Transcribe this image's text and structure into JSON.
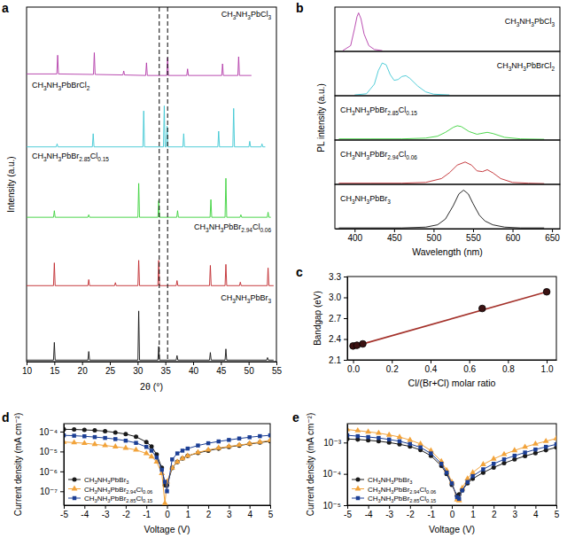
{
  "chart_data": [
    {
      "title": "a",
      "type": "ridgeline",
      "x_label": "2θ (°)",
      "y_label": "Intensity (a.u.)",
      "xlim": [
        10,
        55
      ],
      "xticks": [
        10,
        15,
        20,
        25,
        30,
        35,
        40,
        45,
        50,
        55
      ],
      "ylim": [
        0,
        1.4
      ],
      "tick_labels": "x",
      "vlines": [
        33.9,
        35.4
      ],
      "series": [
        {
          "name": "CH3NH3PbCl3",
          "color": "#b23aa8",
          "x": [
            10,
            15.45,
            15.6,
            15.75,
            22.05,
            22.2,
            22.35,
            27.35,
            27.5,
            27.65,
            31.45,
            31.6,
            31.75,
            35.25,
            35.4,
            35.55,
            38.85,
            39.0,
            39.15,
            45.15,
            45.3,
            45.45,
            48.05,
            48.2,
            48.35,
            50.5
          ],
          "values": [
            0.08,
            0.08,
            0.45,
            0.08,
            0.07,
            0.5,
            0.07,
            0.06,
            0.14,
            0.06,
            0.05,
            0.3,
            0.05,
            0.05,
            0.4,
            0.05,
            0.05,
            0.18,
            0.05,
            0.05,
            0.28,
            0.05,
            0.05,
            0.42,
            0.05,
            0.05
          ]
        },
        {
          "name": "CH3NH3PbBrCl2",
          "color": "#3fc7d4",
          "x": [
            10,
            15.35,
            15.5,
            15.65,
            21.85,
            22.0,
            22.15,
            30.95,
            31.1,
            31.25,
            34.65,
            34.8,
            34.95,
            35.15,
            35.3,
            35.45,
            38.15,
            38.3,
            38.45,
            44.45,
            44.6,
            44.75,
            47.15,
            47.3,
            47.45,
            50.05,
            50.2,
            50.35,
            52.25,
            52.4,
            52.55,
            53
          ],
          "values": [
            0.04,
            0.04,
            0.1,
            0.04,
            0.04,
            0.3,
            0.04,
            0.04,
            0.75,
            0.04,
            0.04,
            0.85,
            0.04,
            0.04,
            0.45,
            0.04,
            0.04,
            0.3,
            0.04,
            0.04,
            0.35,
            0.04,
            0.04,
            0.8,
            0.04,
            0.04,
            0.15,
            0.04,
            0.04,
            0.1,
            0.04,
            0.04
          ]
        },
        {
          "name": "CH3NH3PbBr2.85Cl0.15",
          "color": "#3ad13a",
          "x": [
            10,
            14.85,
            15.0,
            15.15,
            21.05,
            21.2,
            21.35,
            30.05,
            30.2,
            30.35,
            33.65,
            33.8,
            33.95,
            37.05,
            37.2,
            37.35,
            43.05,
            43.2,
            43.35,
            45.75,
            45.9,
            46.05,
            48.45,
            48.6,
            48.75,
            53.35,
            53.5,
            53.65,
            54
          ],
          "values": [
            0.05,
            0.05,
            0.18,
            0.05,
            0.05,
            0.1,
            0.05,
            0.05,
            0.72,
            0.05,
            0.05,
            0.38,
            0.05,
            0.05,
            0.18,
            0.05,
            0.05,
            0.4,
            0.05,
            0.05,
            0.82,
            0.05,
            0.05,
            0.1,
            0.05,
            0.05,
            0.15,
            0.05,
            0.05
          ]
        },
        {
          "name": "CH3NH3PbBr2.94Cl0.06",
          "color": "#c0282d",
          "x": [
            10,
            14.85,
            15.0,
            15.15,
            21.05,
            21.2,
            21.35,
            25.85,
            26.0,
            26.15,
            30.05,
            30.2,
            30.35,
            33.65,
            33.8,
            33.95,
            36.95,
            37.1,
            37.25,
            42.95,
            43.1,
            43.25,
            45.75,
            45.9,
            46.05,
            48.35,
            48.5,
            48.65,
            53.35,
            53.5,
            53.65,
            54.5
          ],
          "values": [
            0.1,
            0.1,
            0.55,
            0.1,
            0.1,
            0.22,
            0.1,
            0.1,
            0.16,
            0.1,
            0.1,
            0.6,
            0.1,
            0.1,
            0.6,
            0.1,
            0.1,
            0.2,
            0.1,
            0.1,
            0.5,
            0.1,
            0.1,
            0.52,
            0.1,
            0.1,
            0.17,
            0.1,
            0.1,
            0.45,
            0.1,
            0.1
          ]
        },
        {
          "name": "CH3NH3PbBr3",
          "color": "#111111",
          "x": [
            10,
            14.85,
            15.0,
            15.15,
            21.05,
            21.2,
            21.35,
            30.05,
            30.2,
            30.35,
            33.65,
            33.8,
            33.95,
            36.95,
            37.1,
            37.25,
            42.95,
            43.1,
            43.25,
            45.75,
            45.9,
            46.05,
            53.25,
            53.4,
            53.55,
            54.5
          ],
          "values": [
            0.03,
            0.03,
            0.38,
            0.03,
            0.03,
            0.2,
            0.03,
            0.03,
            1.0,
            0.03,
            0.03,
            0.3,
            0.03,
            0.03,
            0.12,
            0.03,
            0.03,
            0.18,
            0.03,
            0.03,
            0.25,
            0.03,
            0.03,
            0.08,
            0.03,
            0.03
          ]
        }
      ]
    },
    {
      "title": "b",
      "type": "ridgeline",
      "x_label": "Wavelength (nm)",
      "y_label": "PL intensity (a.u.)",
      "xlim": [
        375,
        660
      ],
      "xticks": [
        400,
        450,
        500,
        550,
        600,
        650
      ],
      "ylim": [
        0,
        1.15
      ],
      "tick_labels": "x",
      "series": [
        {
          "name": "CH3NH3PbCl3",
          "color": "#b23aa8",
          "x": [
            385,
            395,
            400,
            403,
            405,
            408,
            412,
            418,
            425,
            435
          ],
          "values": [
            0.02,
            0.15,
            0.6,
            0.9,
            1.0,
            0.85,
            0.45,
            0.15,
            0.05,
            0.02
          ]
        },
        {
          "name": "CH3NH3PbBrCl2",
          "color": "#3fc7d4",
          "x": [
            400,
            415,
            425,
            430,
            435,
            440,
            445,
            450,
            455,
            460,
            465,
            470,
            480,
            490,
            500,
            520
          ],
          "values": [
            0.02,
            0.05,
            0.3,
            0.65,
            0.85,
            0.8,
            0.55,
            0.4,
            0.42,
            0.5,
            0.52,
            0.45,
            0.25,
            0.1,
            0.04,
            0.02
          ]
        },
        {
          "name": "CH3NH3PbBr2.85Cl0.15",
          "color": "#3ad13a",
          "x": [
            380,
            420,
            460,
            490,
            505,
            515,
            525,
            530,
            535,
            545,
            555,
            560,
            568,
            575,
            590,
            610,
            640
          ],
          "values": [
            0.03,
            0.03,
            0.03,
            0.05,
            0.1,
            0.2,
            0.33,
            0.37,
            0.35,
            0.22,
            0.15,
            0.17,
            0.2,
            0.17,
            0.07,
            0.03,
            0.02
          ]
        },
        {
          "name": "CH3NH3PbBr2.94Cl0.06",
          "color": "#c0282d",
          "x": [
            380,
            420,
            460,
            490,
            510,
            520,
            530,
            540,
            548,
            555,
            562,
            568,
            575,
            585,
            600,
            620,
            640
          ],
          "values": [
            0.03,
            0.03,
            0.03,
            0.05,
            0.15,
            0.3,
            0.5,
            0.58,
            0.5,
            0.35,
            0.33,
            0.38,
            0.3,
            0.15,
            0.05,
            0.03,
            0.02
          ]
        },
        {
          "name": "CH3NH3PbBr3",
          "color": "#111111",
          "x": [
            380,
            420,
            460,
            490,
            505,
            515,
            525,
            532,
            538,
            544,
            550,
            558,
            565,
            575,
            590,
            610,
            640
          ],
          "values": [
            0.02,
            0.02,
            0.02,
            0.04,
            0.1,
            0.25,
            0.6,
            0.9,
            1.0,
            0.9,
            0.65,
            0.35,
            0.2,
            0.1,
            0.04,
            0.02,
            0.02
          ]
        }
      ]
    },
    {
      "title": "c",
      "type": "scatter",
      "x_label": "Cl/(Br+Cl) molar ratio",
      "y_label": "Bandgap (eV)",
      "xlim": [
        -0.03,
        1.05
      ],
      "xticks": [
        {
          "value": 0,
          "label": "0.0"
        },
        0.2,
        0.4,
        0.6,
        0.8,
        {
          "value": 1,
          "label": "1.0"
        }
      ],
      "ylim": [
        2.1,
        3.3
      ],
      "yticks": [
        2.1,
        2.4,
        2.7,
        {
          "value": 3,
          "label": "3.0"
        },
        3.3
      ],
      "series": [
        {
          "type": "line",
          "color": "#a4322b",
          "x": [
            0,
            1
          ],
          "values": [
            2.29,
            3.08
          ]
        },
        {
          "type": "scatter",
          "marker": "circle",
          "color": "#3b1212",
          "x": [
            0,
            0.02,
            0.05,
            0.667,
            1
          ],
          "values": [
            2.3,
            2.31,
            2.33,
            2.84,
            3.08
          ]
        }
      ]
    },
    {
      "title": "d",
      "type": "line",
      "log": "y",
      "x_label": "Voltage (V)",
      "y_label": "Current density (mA cm⁻²)",
      "xlim": [
        -5,
        5
      ],
      "xticks": [
        -5,
        -4,
        -3,
        -2,
        -1,
        0,
        1,
        2,
        3,
        4,
        5
      ],
      "ylim": [
        2e-08,
        0.00025
      ],
      "yticks": [
        {
          "value": 1e-07,
          "label": "10⁻⁷"
        },
        {
          "value": 1e-06,
          "label": "10⁻⁶"
        },
        {
          "value": 1e-05,
          "label": "10⁻⁵"
        },
        {
          "value": 0.0001,
          "label": "10⁻⁴"
        }
      ],
      "legend": "lower left",
      "x": [
        -5,
        -4.5,
        -4,
        -3.5,
        -3,
        -2.5,
        -2,
        -1.5,
        -1,
        -0.75,
        -0.5,
        -0.25,
        -0.1,
        0,
        0.25,
        0.5,
        0.75,
        1,
        1.5,
        2,
        2.5,
        3,
        3.5,
        4,
        4.5,
        5
      ],
      "series": [
        {
          "name": "CH3NH3PbBr3",
          "color": "#1a1a1a",
          "marker": "circle",
          "values": [
            0.00013,
            0.000128,
            0.000122,
            0.000115,
            0.000105,
            9e-05,
            7.5e-05,
            5.5e-05,
            3e-05,
            1.8e-05,
            7e-06,
            1.5e-06,
            2e-07,
            2e-07,
            1.5e-06,
            3e-06,
            4.5e-06,
            6e-06,
            8.5e-06,
            1.1e-05,
            1.4e-05,
            1.7e-05,
            2e-05,
            2.4e-05,
            2.8e-05,
            3.3e-05
          ]
        },
        {
          "name": "CH3NH3PbBr2.94Cl0.06",
          "color": "#f2a33a",
          "marker": "triangle",
          "values": [
            3e-05,
            2.8e-05,
            2.6e-05,
            2.3e-05,
            2e-05,
            1.75e-05,
            1.5e-05,
            1.2e-05,
            8e-06,
            5.5e-06,
            3e-06,
            8e-07,
            2.5e-08,
            3e-07,
            1.5e-06,
            3e-06,
            4.5e-06,
            6e-06,
            9e-06,
            1.2e-05,
            1.5e-05,
            1.8e-05,
            2.1e-05,
            2.5e-05,
            3e-05,
            3.6e-05
          ]
        },
        {
          "name": "CH3NH3PbBr2.85Cl0.15",
          "color": "#1c3f95",
          "marker": "square",
          "values": [
            6.5e-05,
            6.2e-05,
            5.8e-05,
            5.3e-05,
            4.8e-05,
            4.2e-05,
            3.5e-05,
            2.7e-05,
            1.7e-05,
            1.1e-05,
            5e-06,
            1.2e-06,
            3e-07,
            1e-07,
            4e-06,
            8e-06,
            1.1e-05,
            1.4e-05,
            2e-05,
            2.6e-05,
            3.2e-05,
            3.8e-05,
            4.5e-05,
            5.2e-05,
            5.9e-05,
            6.5e-05
          ]
        }
      ]
    },
    {
      "title": "e",
      "type": "line",
      "log": "y",
      "x_label": "Voltage (V)",
      "y_label": "Current density (mA cm⁻²)",
      "xlim": [
        -5,
        5
      ],
      "xticks": [
        -5,
        -4,
        -3,
        -2,
        -1,
        0,
        1,
        2,
        3,
        4,
        5
      ],
      "ylim": [
        1e-05,
        0.004
      ],
      "yticks": [
        {
          "value": 1e-05,
          "label": "10⁻⁵"
        },
        {
          "value": 0.0001,
          "label": "10⁻⁴"
        },
        {
          "value": 0.001,
          "label": "10⁻³"
        }
      ],
      "legend": "lower left",
      "x": [
        -5,
        -4.5,
        -4,
        -3.5,
        -3,
        -2.5,
        -2,
        -1.5,
        -1,
        -0.5,
        -0.25,
        0,
        0.25,
        0.35,
        0.5,
        0.75,
        1,
        1.5,
        2,
        2.5,
        3,
        3.5,
        4,
        4.5,
        5
      ],
      "series": [
        {
          "name": "CH3NH3PbBr3",
          "color": "#1a1a1a",
          "marker": "circle",
          "values": [
            0.0013,
            0.00125,
            0.00118,
            0.0011,
            0.001,
            0.00088,
            0.00075,
            0.00058,
            0.00038,
            0.00018,
            0.0001,
            4.5e-05,
            2e-05,
            2.2e-05,
            3e-05,
            5e-05,
            7e-05,
            0.00011,
            0.00016,
            0.00022,
            0.00029,
            0.00037,
            0.00046,
            0.00057,
            0.0007
          ]
        },
        {
          "name": "CH3NH3PbBr2.94Cl0.06",
          "color": "#f2a33a",
          "marker": "triangle",
          "values": [
            0.0026,
            0.0024,
            0.0022,
            0.002,
            0.00175,
            0.0015,
            0.0012,
            0.0009,
            0.00055,
            0.00025,
            0.00013,
            5.5e-05,
            1.5e-05,
            1.4e-05,
            3.5e-05,
            7e-05,
            0.00011,
            0.0002,
            0.0003,
            0.00042,
            0.00056,
            0.00072,
            0.0009,
            0.0011,
            0.00135
          ]
        },
        {
          "name": "CH3NH3PbBr2.85Cl0.15",
          "color": "#1c3f95",
          "marker": "square",
          "values": [
            0.0017,
            0.0016,
            0.0015,
            0.0014,
            0.00125,
            0.0011,
            0.0009,
            0.0007,
            0.00045,
            0.00021,
            0.00011,
            5e-05,
            1.8e-05,
            1.6e-05,
            3e-05,
            5.5e-05,
            8.5e-05,
            0.00014,
            0.00021,
            0.00029,
            0.00038,
            0.00048,
            0.0006,
            0.00073,
            0.00088
          ]
        }
      ]
    }
  ]
}
